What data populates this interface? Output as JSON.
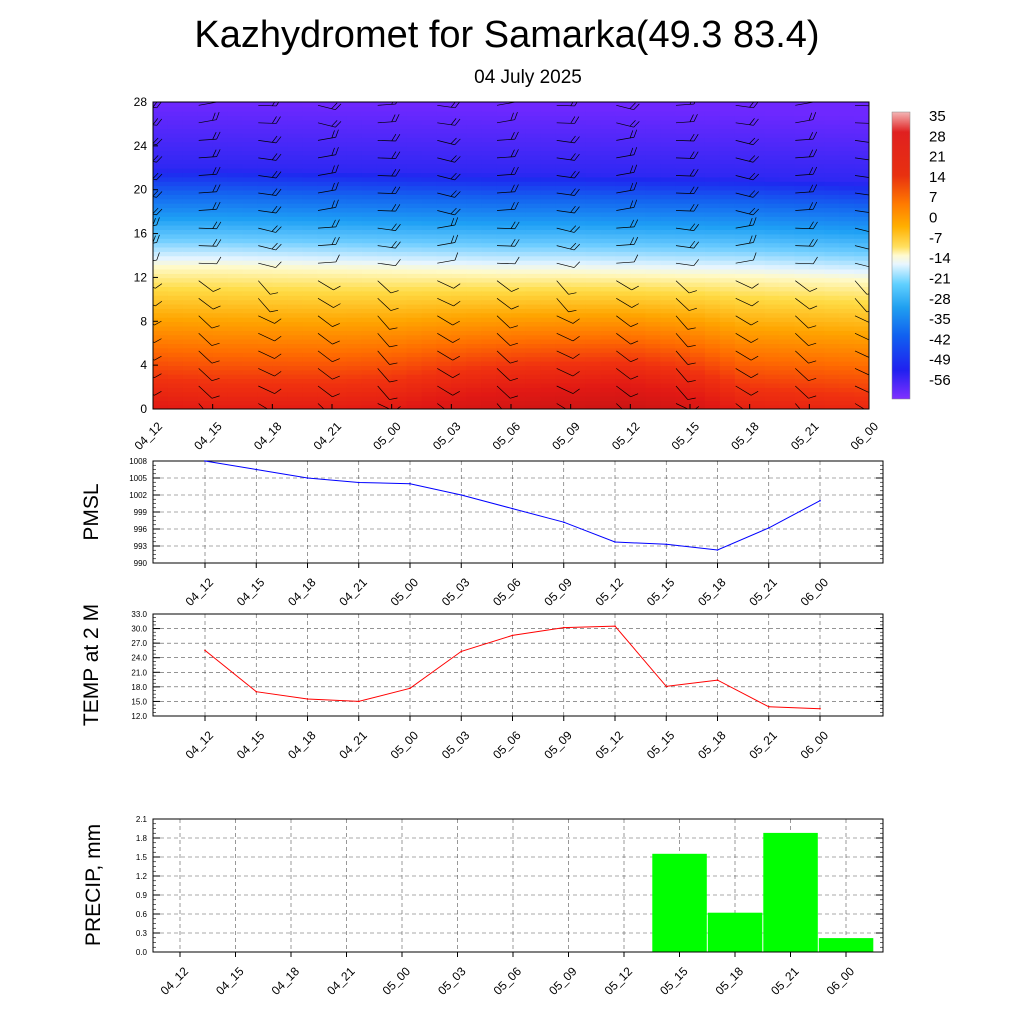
{
  "title": "Kazhydromet for Samarka(49.3 83.4)",
  "subtitle": "04 July 2025",
  "chart_data": [
    {
      "type": "heatmap",
      "x": [
        "04_12",
        "04_15",
        "04_18",
        "04_21",
        "05_00",
        "05_03",
        "05_06",
        "05_09",
        "05_12",
        "05_15",
        "05_18",
        "05_21",
        "06_00"
      ],
      "yticks": [
        "0",
        "4",
        "8",
        "12",
        "16",
        "20",
        "24",
        "28"
      ],
      "ylim": [
        0,
        28
      ],
      "colorbar": {
        "labels": [
          "35",
          "28",
          "21",
          "14",
          "7",
          "0",
          "-7",
          "-14",
          "-21",
          "-28",
          "-35",
          "-42",
          "-49",
          "-56"
        ]
      },
      "freezing_level": [
        13.0,
        13.0,
        12.9,
        12.8,
        12.7,
        12.6,
        12.5,
        12.5,
        12.4,
        12.3,
        12.2,
        12.0,
        11.8
      ],
      "surface_temp": [
        28,
        27,
        27,
        27,
        28,
        31,
        33,
        34,
        35,
        32,
        26,
        25,
        24
      ],
      "grid": false
    },
    {
      "type": "line",
      "ylabel": "PMSL",
      "x": [
        "04_12",
        "04_15",
        "04_18",
        "04_21",
        "05_00",
        "05_03",
        "05_06",
        "05_09",
        "05_12",
        "05_15",
        "05_18",
        "05_21",
        "06_00"
      ],
      "yticks": [
        "1008",
        "1005",
        "1002",
        "999",
        "996",
        "993",
        "990"
      ],
      "ylim": [
        990,
        1008
      ],
      "series": [
        {
          "values": [
            1008,
            1006.5,
            1005,
            1004.2,
            1004,
            1002,
            999.6,
            997.2,
            993.7,
            993.3,
            992.3,
            996.2,
            1001
          ]
        }
      ],
      "color": "#0000ff",
      "grid": true
    },
    {
      "type": "line",
      "ylabel": "TEMP at 2 M",
      "x": [
        "04_12",
        "04_15",
        "04_18",
        "04_21",
        "05_00",
        "05_03",
        "05_06",
        "05_09",
        "05_12",
        "05_15",
        "05_18",
        "05_21",
        "06_00"
      ],
      "yticks": [
        "33.0",
        "30.0",
        "27.0",
        "24.0",
        "21.0",
        "18.0",
        "15.0",
        "12.0"
      ],
      "ylim": [
        12,
        33
      ],
      "series": [
        {
          "values": [
            25.5,
            17,
            15.5,
            15,
            17.7,
            25.3,
            28.6,
            30.2,
            30.5,
            18.1,
            19.4,
            13.9,
            13.5
          ]
        }
      ],
      "color": "#ff0000",
      "grid": true
    },
    {
      "type": "bar",
      "ylabel": "PRECIP, mm",
      "categories": [
        "04_12",
        "04_15",
        "04_18",
        "04_21",
        "05_00",
        "05_03",
        "05_06",
        "05_09",
        "05_12",
        "05_15",
        "05_18",
        "05_21",
        "06_00"
      ],
      "yticks": [
        "2.1",
        "1.8",
        "1.5",
        "1.2",
        "0.9",
        "0.6",
        "0.3",
        "0.0"
      ],
      "ylim": [
        0,
        2.1
      ],
      "values": [
        0,
        0,
        0,
        0,
        0,
        0,
        0,
        0,
        0,
        1.55,
        0.62,
        1.88,
        0.22
      ],
      "color": "#00ff00",
      "grid": true
    }
  ]
}
